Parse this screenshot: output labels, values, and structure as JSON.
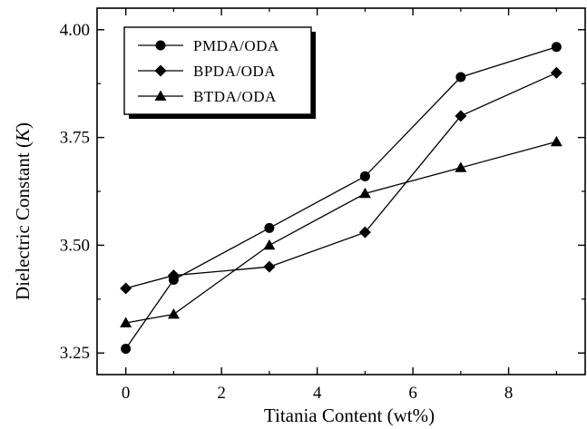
{
  "chart_data": {
    "type": "line",
    "xlabel": "Titania Content (wt%)",
    "ylabel_prefix": "Dielectric Constant (",
    "ylabel_var": "K",
    "ylabel_suffix": ")",
    "xlim": [
      -0.6,
      9.6
    ],
    "ylim": [
      3.2,
      4.05
    ],
    "x_ticks": [
      0,
      2,
      4,
      6,
      8
    ],
    "x_tick_labels": [
      "0",
      "2",
      "4",
      "6",
      "8"
    ],
    "y_ticks": [
      3.25,
      3.5,
      3.75,
      4.0
    ],
    "y_tick_labels": [
      "3.25",
      "3.50",
      "3.75",
      "4.00"
    ],
    "x_minor_ticks": [
      1,
      3,
      5,
      7,
      9
    ],
    "y_minor_ticks": [
      3.375,
      3.625,
      3.875
    ],
    "legend_position": "top-left",
    "series": [
      {
        "name": "PMDA/ODA",
        "marker": "circle",
        "x": [
          0,
          1,
          3,
          5,
          7,
          9
        ],
        "y": [
          3.26,
          3.42,
          3.54,
          3.66,
          3.89,
          3.96
        ]
      },
      {
        "name": "BPDA/ODA",
        "marker": "diamond",
        "x": [
          0,
          1,
          3,
          5,
          7,
          9
        ],
        "y": [
          3.4,
          3.43,
          3.45,
          3.53,
          3.8,
          3.9
        ]
      },
      {
        "name": "BTDA/ODA",
        "marker": "triangle",
        "x": [
          0,
          1,
          3,
          5,
          7,
          9
        ],
        "y": [
          3.32,
          3.34,
          3.5,
          3.62,
          3.68,
          3.74
        ]
      }
    ]
  }
}
